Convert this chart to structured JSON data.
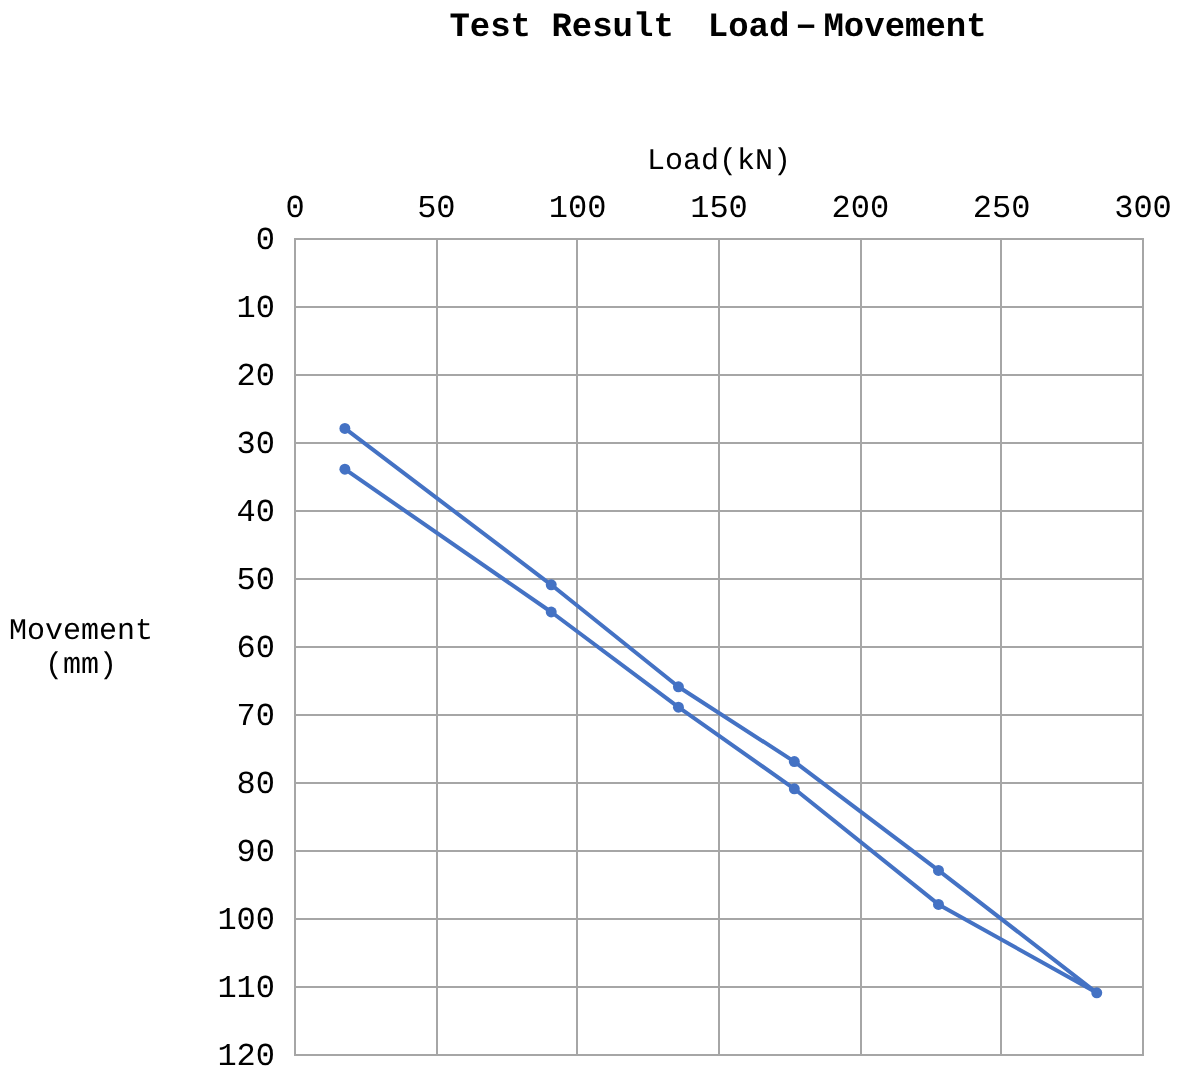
{
  "chart_data": {
    "type": "line",
    "title": "Test Result　Load－Movement",
    "xlabel": "Load(kN)",
    "ylabel": "Movement\n(mm)",
    "x": [
      18,
      91,
      136,
      177,
      228,
      284,
      228,
      177,
      136,
      91,
      18
    ],
    "series": [
      {
        "color": "#4472c4",
        "values": [
          34,
          55,
          69,
          81,
          98,
          111,
          93,
          77,
          66,
          51,
          28
        ]
      }
    ],
    "xlim": [
      0,
      300
    ],
    "xticks": [
      0,
      50,
      100,
      150,
      200,
      250,
      300
    ],
    "ylim": [
      120,
      0
    ],
    "yticks": [
      0,
      10,
      20,
      30,
      40,
      50,
      60,
      70,
      80,
      90,
      100,
      110,
      120
    ],
    "grid": true,
    "marker": "circle",
    "line_style": "solid"
  }
}
